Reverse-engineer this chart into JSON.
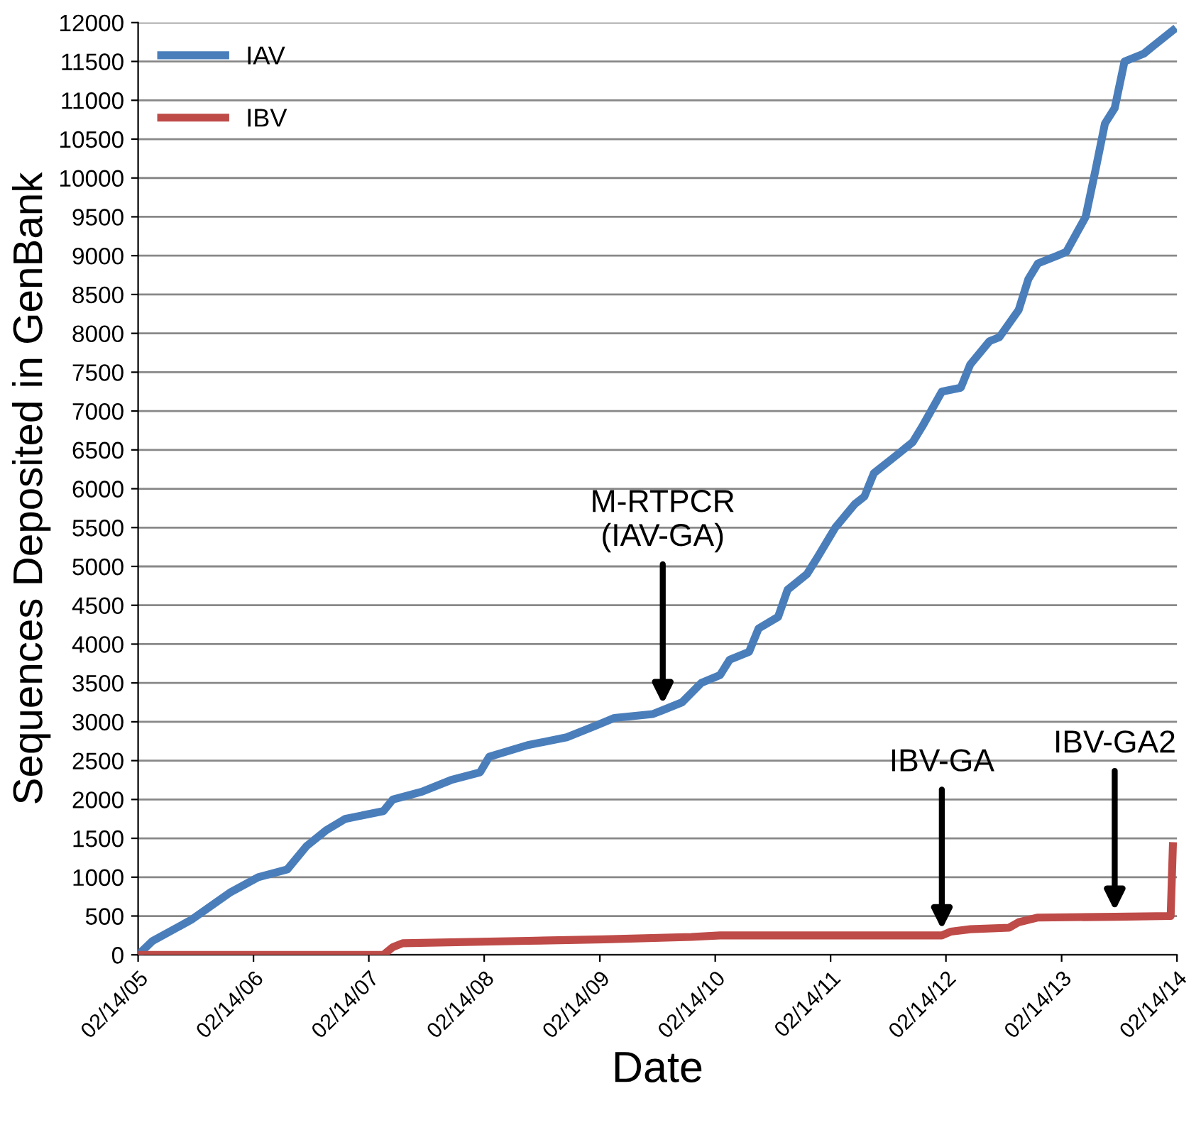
{
  "chart_data": {
    "type": "line",
    "xlabel": "Date",
    "ylabel": "Sequences Deposited in GenBank",
    "xlim": [
      "2005-02-14",
      "2014-02-14"
    ],
    "xticks": [
      {
        "value": "2005-02-14",
        "label": "02/14/05"
      },
      {
        "value": "2006-02-14",
        "label": "02/14/06"
      },
      {
        "value": "2007-02-14",
        "label": "02/14/07"
      },
      {
        "value": "2008-02-14",
        "label": "02/14/08"
      },
      {
        "value": "2009-02-14",
        "label": "02/14/09"
      },
      {
        "value": "2010-02-14",
        "label": "02/14/10"
      },
      {
        "value": "2011-02-14",
        "label": "02/14/11"
      },
      {
        "value": "2012-02-14",
        "label": "02/14/12"
      },
      {
        "value": "2013-02-14",
        "label": "02/14/13"
      },
      {
        "value": "2014-02-14",
        "label": "02/14/14"
      }
    ],
    "ylim": [
      0,
      12000
    ],
    "yticks": [
      0,
      500,
      1000,
      1500,
      2000,
      2500,
      3000,
      3500,
      4000,
      4500,
      5000,
      5500,
      6000,
      6500,
      7000,
      7500,
      8000,
      8500,
      9000,
      9500,
      10000,
      10500,
      11000,
      11500,
      12000
    ],
    "grid": "y",
    "legend": "top left",
    "marker": "none",
    "line_style": "solid",
    "series": [
      {
        "name": "IAV",
        "color": "#4a7ebb",
        "x": [
          "2005-02-14",
          "2005-04",
          "2005-08",
          "2005-12",
          "2006-03",
          "2006-06",
          "2006-08",
          "2006-10",
          "2006-12",
          "2007-04",
          "2007-05",
          "2007-08",
          "2007-11",
          "2008-02",
          "2008-03",
          "2008-07",
          "2008-11",
          "2009-02",
          "2009-04",
          "2009-08",
          "2009-09",
          "2009-11",
          "2010-01",
          "2010-03",
          "2010-04",
          "2010-06",
          "2010-07",
          "2010-09",
          "2010-10",
          "2010-12",
          "2011-01",
          "2011-03",
          "2011-05",
          "2011-06",
          "2011-07",
          "2011-09",
          "2011-11",
          "2011-12",
          "2012-02",
          "2012-04",
          "2012-05",
          "2012-07",
          "2012-08",
          "2012-10",
          "2012-11",
          "2012-12",
          "2013-02",
          "2013-03",
          "2013-05",
          "2013-06",
          "2013-07",
          "2013-08",
          "2013-09",
          "2013-11",
          "2013-12",
          "2014-02"
        ],
        "values": [
          0,
          180,
          450,
          800,
          1000,
          1100,
          1400,
          1600,
          1750,
          1850,
          2000,
          2100,
          2250,
          2350,
          2550,
          2700,
          2800,
          2950,
          3050,
          3100,
          3150,
          3250,
          3500,
          3600,
          3800,
          3900,
          4200,
          4350,
          4700,
          4900,
          5100,
          5500,
          5800,
          5900,
          6200,
          6400,
          6600,
          6800,
          7250,
          7300,
          7600,
          7900,
          7950,
          8300,
          8700,
          8900,
          9000,
          9050,
          9500,
          10100,
          10700,
          10900,
          11500,
          11600,
          11700,
          11900
        ]
      },
      {
        "name": "IBV",
        "color": "#be4b48",
        "x": [
          "2005-02-14",
          "2007-04",
          "2007-05",
          "2007-06",
          "2008-07",
          "2009-03",
          "2009-12",
          "2010-03",
          "2012-02",
          "2012-03",
          "2012-05",
          "2012-09",
          "2012-10",
          "2012-12",
          "2013-08",
          "2014-01-25",
          "2014-02"
        ],
        "values": [
          0,
          0,
          100,
          150,
          180,
          200,
          230,
          250,
          250,
          300,
          330,
          350,
          420,
          480,
          490,
          500,
          1400
        ]
      }
    ],
    "annotations": [
      {
        "text": "M-RTPCR\n(IAV-GA)",
        "x": "2009-09",
        "y": 3150
      },
      {
        "text": "IBV-GA",
        "x": "2012-02",
        "y": 250
      },
      {
        "text": "IBV-GA2",
        "x": "2013-08",
        "y": 490
      }
    ]
  }
}
